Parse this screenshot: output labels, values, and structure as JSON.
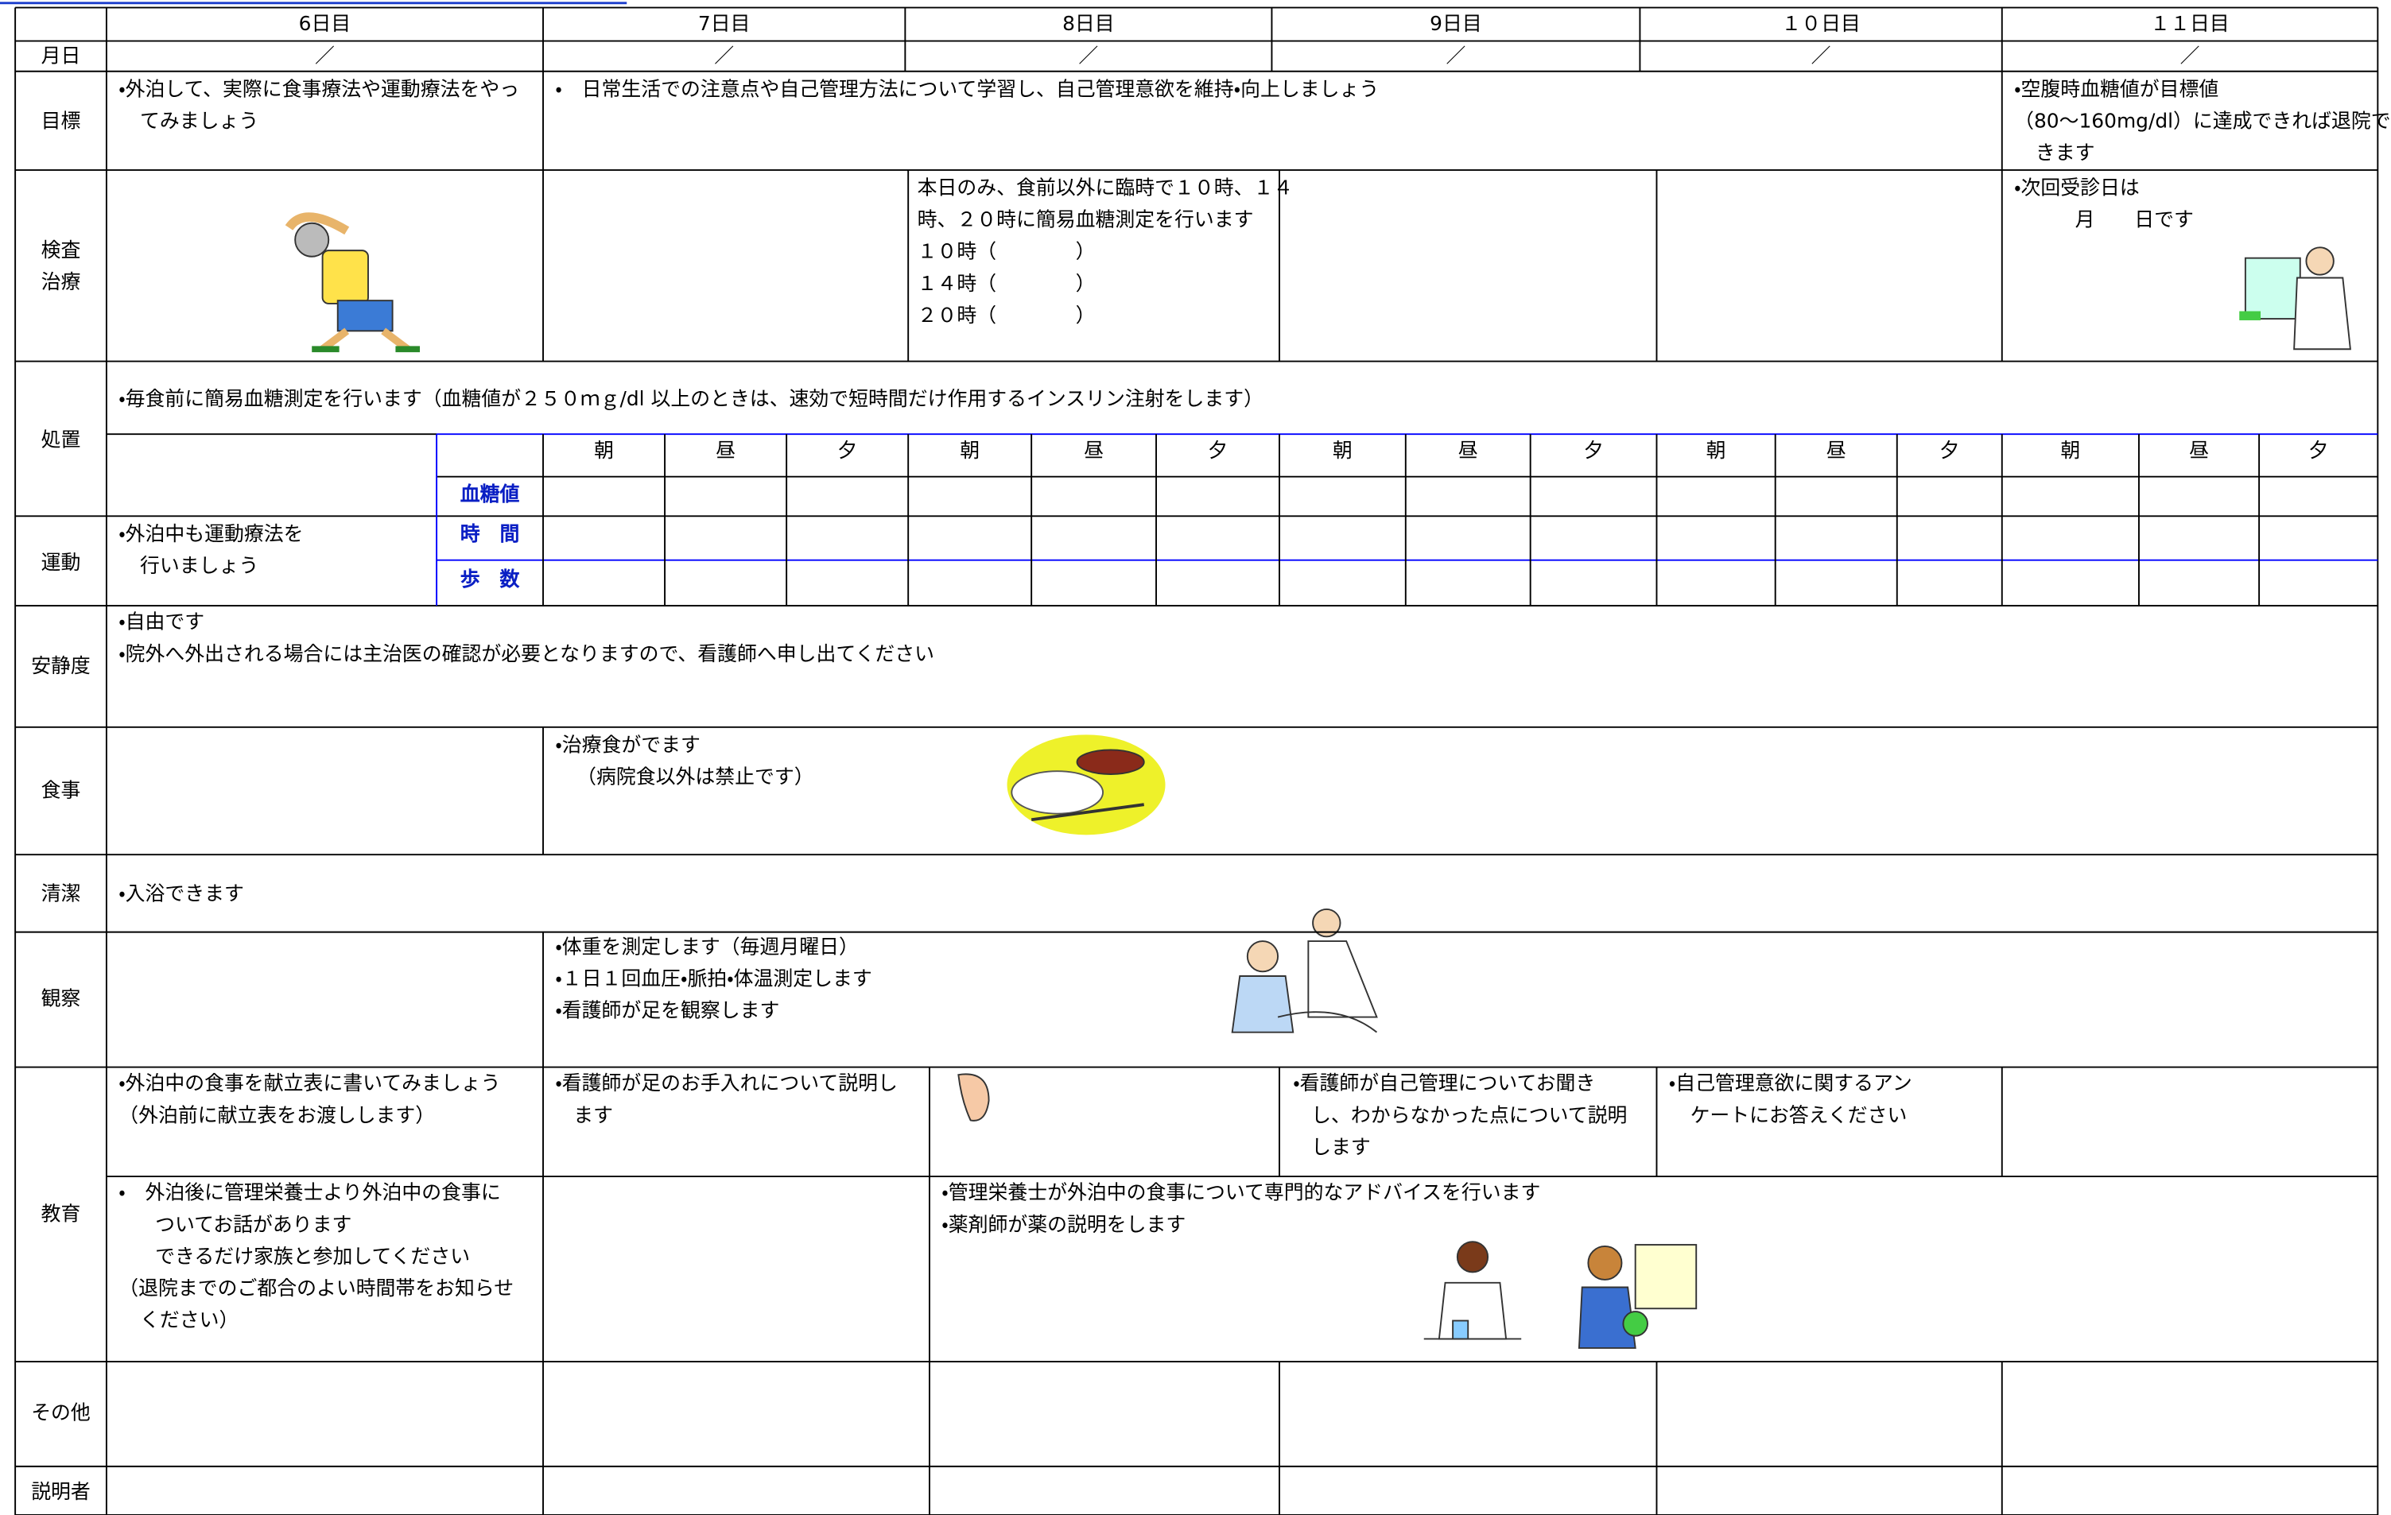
{
  "header": {
    "days": [
      "6日目",
      "7日目",
      "8日目",
      "9日目",
      "１０日目",
      "１１日目"
    ],
    "date_label": "月日",
    "dates": [
      "／",
      "／",
      "／",
      "／",
      "／",
      "／"
    ]
  },
  "labels": {
    "goal": "目標",
    "exam": [
      "検査",
      "治療"
    ],
    "treatment": "処置",
    "exercise": "運動",
    "rest": "安静度",
    "meal": "食事",
    "clean": "清潔",
    "observe": "観察",
    "education": "教育",
    "other": "その他",
    "explainer": "説明者"
  },
  "goal": {
    "day6": [
      "・外泊して、実際に食事療法や運動療法をやっ",
      "てみましょう"
    ],
    "day7_10": [
      "・　日常生活での注意点や自己管理方法について学習し、自己管理意欲を維持・向上しましょう"
    ],
    "day11": [
      "・空腹時血糖値が目標値",
      "（80～160mg/dl）に達成できれば退院で",
      "きます"
    ]
  },
  "exam": {
    "day8": [
      "本日のみ、食前以外に臨時で１０時、１４",
      "時、２０時に簡易血糖測定を行います",
      "１０時（　　　　）",
      "１４時（　　　　）",
      "２０時（　　　　）"
    ],
    "day11": [
      "・次回受診日は",
      "月　　日です"
    ]
  },
  "treatment": {
    "note": "・毎食前に簡易血糖測定を行います（血糖値が２５０ｍｇ/dl 以上のときは、速効で短時間だけ作用するインスリン注射をします）",
    "times": [
      "朝",
      "昼",
      "夕",
      "朝",
      "昼",
      "夕",
      "朝",
      "昼",
      "夕",
      "朝",
      "昼",
      "夕",
      "朝",
      "昼",
      "夕"
    ],
    "blood_sugar": "血糖値"
  },
  "exercise": {
    "note": [
      "・外泊中も運動療法を",
      "行いましょう"
    ],
    "time": "時　間",
    "steps": "歩　数"
  },
  "rest": [
    "・自由です",
    "・院外へ外出される場合には主治医の確認が必要となりますので、看護師へ申し出てください"
  ],
  "meal": [
    "・治療食がでます",
    "（病院食以外は禁止です）"
  ],
  "clean": "・入浴できます",
  "observe": [
    "・体重を測定します（毎週月曜日）",
    "・１日１回血圧・脈拍・体温測定します",
    "・看護師が足を観察します"
  ],
  "education": {
    "upper": {
      "day6": [
        "・外泊中の食事を献立表に書いてみましょう",
        "（外泊前に献立表をお渡しします）"
      ],
      "day7": [
        "・看護師が足のお手入れについて説明し",
        "ます"
      ],
      "day9": [
        "・看護師が自己管理についてお聞き",
        "し、わからなかった点について説明",
        "します"
      ],
      "day10": [
        "・自己管理意欲に関するアン",
        "ケートにお答えください"
      ]
    },
    "lower": {
      "day6": [
        "・　外泊後に管理栄養士より外泊中の食事に",
        "ついてお話があります",
        "できるだけ家族と参加してください",
        "（退院までのご都合のよい時間帯をお知らせ",
        "ください）"
      ],
      "day8": [
        "・管理栄養士が外泊中の食事について専門的なアドバイスを行います",
        "・薬剤師が薬の説明をします"
      ]
    }
  }
}
